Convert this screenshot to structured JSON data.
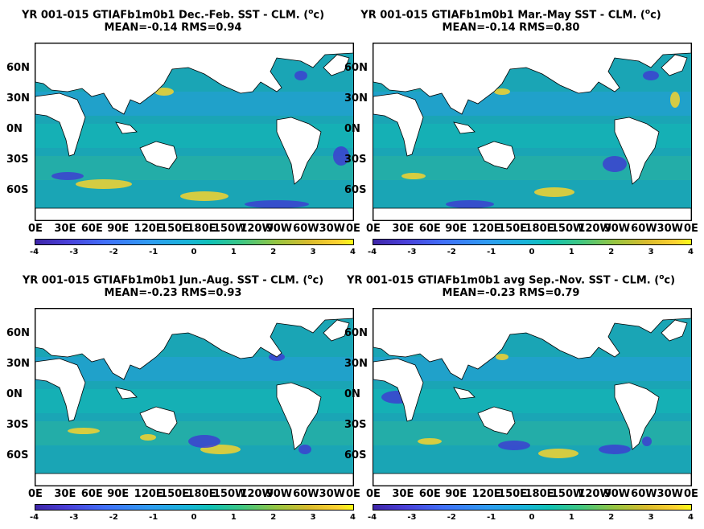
{
  "panels": [
    {
      "title_line1": "YR 001-015 GTIAFb1m0b1  Dec.-Feb. SST - CLM. (",
      "title_unit": "o",
      "title_unit_end": "c)",
      "title_line2": "MEAN=-0.14   RMS=0.94"
    },
    {
      "title_line1": "YR 001-015 GTIAFb1m0b1 Mar.-May SST - CLM. (",
      "title_unit": "o",
      "title_unit_end": "c)",
      "title_line2": "MEAN=-0.14   RMS=0.80"
    },
    {
      "title_line1": "YR 001-015 GTIAFb1m0b1 Jun.-Aug. SST - CLM. (",
      "title_unit": "o",
      "title_unit_end": "c)",
      "title_line2": "MEAN=-0.23   RMS=0.93"
    },
    {
      "title_line1": "YR 001-015 GTIAFb1m0b1 avg Sep.-Nov. SST - CLM. (",
      "title_unit": "o",
      "title_unit_end": "c)",
      "title_line2": "MEAN=-0.23   RMS=0.79"
    }
  ],
  "lat_labels": [
    "60N",
    "30N",
    "0N",
    "30S",
    "60S"
  ],
  "lon_labels": [
    "0E",
    "30E",
    "60E",
    "90E",
    "120E",
    "150E",
    "180E",
    "150W",
    "120W",
    "90W",
    "60W",
    "30W",
    "0E"
  ],
  "colorbar_ticks": [
    "-4",
    "-3",
    "-2",
    "-1",
    "0",
    "1",
    "2",
    "3",
    "4"
  ],
  "colors": {
    "ocean": "#1aa5b5",
    "land": "#ffffff",
    "warm": "#f6d22e",
    "cold": "#3c3fd0"
  }
}
